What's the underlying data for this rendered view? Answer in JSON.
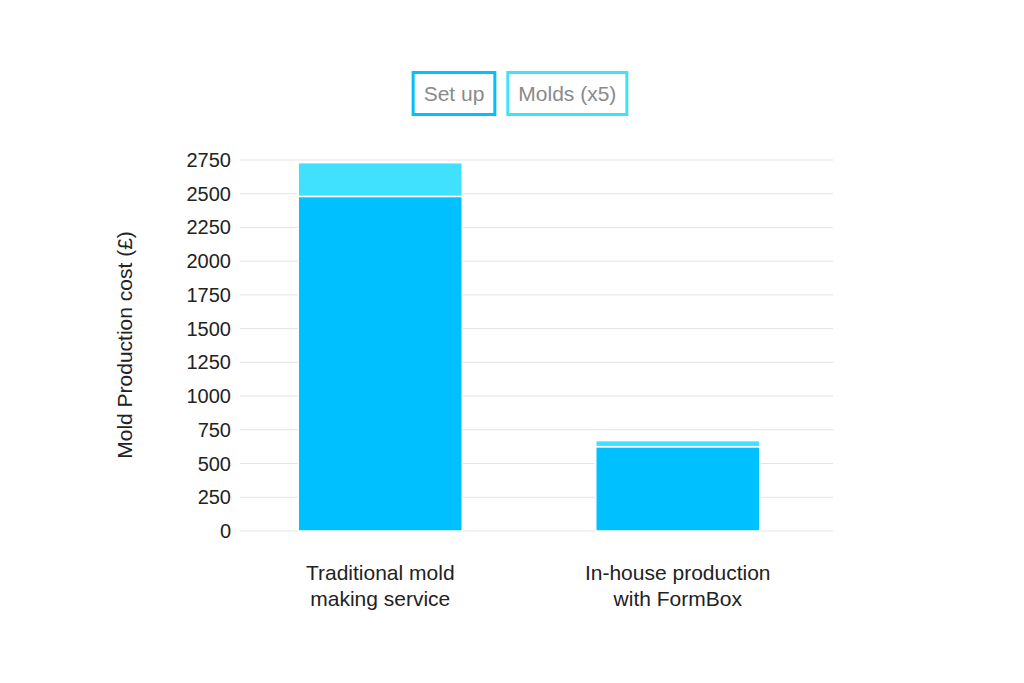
{
  "chart_data": {
    "type": "bar",
    "stacked": true,
    "y_label": "Mold Production cost (£)",
    "categories": [
      "Traditional mold\nmaking service",
      "In-house production\nwith FormBox"
    ],
    "series": [
      {
        "name": "Set up",
        "color": "#00c0ff",
        "values": [
          2480,
          625
        ]
      },
      {
        "name": "Molds (x5)",
        "color": "#40e0ff",
        "values": [
          250,
          45
        ]
      }
    ],
    "ylim": [
      0,
      2750
    ],
    "yticks": [
      0,
      250,
      500,
      750,
      1000,
      1250,
      1500,
      1750,
      2000,
      2250,
      2500,
      2750
    ],
    "grid": true,
    "legend": "top"
  }
}
